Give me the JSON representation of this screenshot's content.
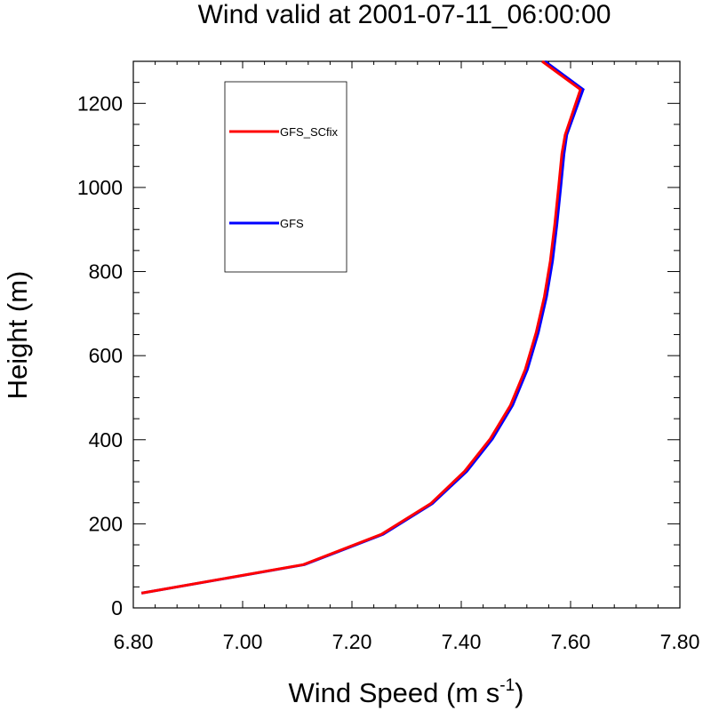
{
  "chart_data": {
    "type": "line",
    "title": "Wind valid at 2001-07-11_06:00:00",
    "xlabel": "Wind Speed (m s",
    "xlabel_superscript": "-1",
    "xlabel_suffix": ")",
    "ylabel": "Height (m)",
    "xlim": [
      6.8,
      7.8
    ],
    "ylim": [
      0,
      1300
    ],
    "xticks": [
      6.8,
      7.0,
      7.2,
      7.4,
      7.6,
      7.8
    ],
    "xtick_labels": [
      "6.80",
      "7.00",
      "7.20",
      "7.40",
      "7.60",
      "7.80"
    ],
    "yticks": [
      0,
      200,
      400,
      600,
      800,
      1000,
      1200
    ],
    "ytick_labels": [
      "0",
      "200",
      "400",
      "600",
      "800",
      "1000",
      "1200"
    ],
    "grid": false,
    "legend_position": "top-left",
    "series": [
      {
        "name": "GFS",
        "color": "#0000ff",
        "points": [
          [
            6.815,
            35
          ],
          [
            7.113,
            103
          ],
          [
            7.257,
            175
          ],
          [
            7.347,
            248
          ],
          [
            7.41,
            325
          ],
          [
            7.457,
            402
          ],
          [
            7.494,
            482
          ],
          [
            7.521,
            567
          ],
          [
            7.541,
            655
          ],
          [
            7.556,
            740
          ],
          [
            7.567,
            825
          ],
          [
            7.575,
            912
          ],
          [
            7.582,
            1000
          ],
          [
            7.588,
            1080
          ],
          [
            7.593,
            1125
          ],
          [
            7.623,
            1233
          ],
          [
            7.553,
            1300
          ]
        ]
      },
      {
        "name": "GFS_SCfix",
        "color": "#ff0000",
        "points": [
          [
            6.815,
            35
          ],
          [
            7.111,
            103
          ],
          [
            7.254,
            175
          ],
          [
            7.344,
            248
          ],
          [
            7.406,
            325
          ],
          [
            7.453,
            402
          ],
          [
            7.49,
            482
          ],
          [
            7.517,
            567
          ],
          [
            7.537,
            655
          ],
          [
            7.552,
            740
          ],
          [
            7.563,
            825
          ],
          [
            7.571,
            912
          ],
          [
            7.578,
            1000
          ],
          [
            7.584,
            1080
          ],
          [
            7.59,
            1125
          ],
          [
            7.618,
            1233
          ],
          [
            7.548,
            1300
          ]
        ]
      }
    ]
  }
}
